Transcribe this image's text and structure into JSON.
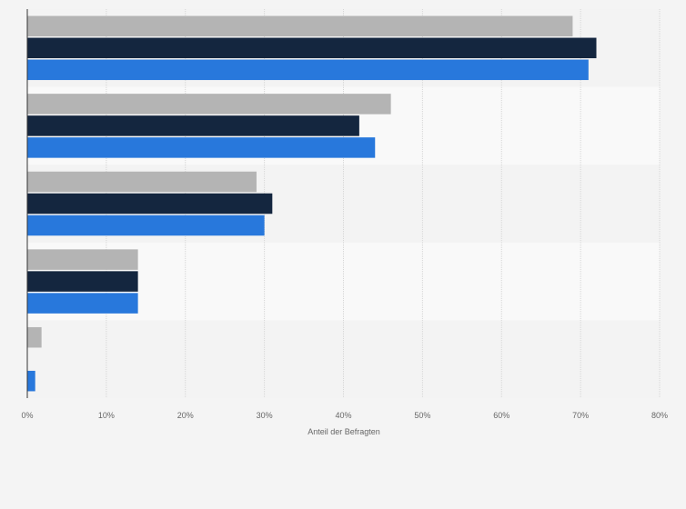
{
  "chart_data": {
    "type": "bar",
    "orientation": "horizontal",
    "categories": [
      "",
      "",
      "",
      "",
      ""
    ],
    "series": [
      {
        "values": [
          69,
          46,
          29,
          14,
          1.8
        ]
      },
      {
        "values": [
          72,
          42,
          31,
          14,
          0
        ]
      },
      {
        "values": [
          71,
          44,
          30,
          14,
          1
        ]
      }
    ],
    "series_colors": [
      "#b4b4b4",
      "#14263f",
      "#2878dc"
    ],
    "xlabel": "Anteil der Befragten",
    "ylabel": "",
    "xlim": [
      0,
      80
    ],
    "x_ticks": [
      0,
      10,
      20,
      30,
      40,
      50,
      60,
      70,
      80
    ],
    "tick_format": "{v}%",
    "grid": true,
    "legend": "none"
  }
}
